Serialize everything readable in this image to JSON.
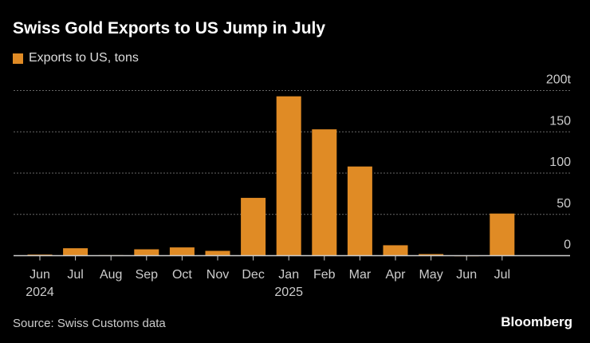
{
  "title": "Swiss Gold Exports to US Jump in July",
  "source": "Source: Swiss Customs data",
  "brand": "Bloomberg",
  "colors": {
    "bar": "#e08b25",
    "background": "#000000",
    "grid": "#666666"
  },
  "chart_data": {
    "type": "bar",
    "title": "Swiss Gold Exports to US Jump in July",
    "categories": [
      "Jun",
      "Jul",
      "Aug",
      "Sep",
      "Oct",
      "Nov",
      "Dec",
      "Jan",
      "Feb",
      "Mar",
      "Apr",
      "May",
      "Jun",
      "Jul"
    ],
    "year_labels": {
      "0": "2024",
      "7": "2025"
    },
    "series": [
      {
        "name": "Exports to US, tons",
        "values": [
          1.3,
          9,
          0.6,
          7.7,
          10,
          5.8,
          70,
          193,
          153,
          108,
          12.6,
          1.9,
          0.3,
          51
        ]
      }
    ],
    "y_ticks": [
      "0",
      "50",
      "100",
      "150",
      "200t"
    ],
    "y_tick_values": [
      0,
      50,
      100,
      150,
      200
    ],
    "ylim": [
      0,
      200
    ],
    "grid": true,
    "y_axis_position": "right",
    "legend": "top-left"
  }
}
